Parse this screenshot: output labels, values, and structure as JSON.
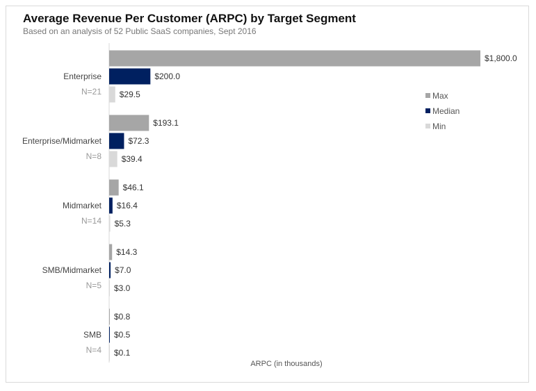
{
  "chart_data": {
    "type": "bar",
    "orientation": "horizontal",
    "title": "Average Revenue Per Customer (ARPC) by Target Segment",
    "subtitle": "Based on an analysis of 52 Public SaaS companies, Sept 2016",
    "xlabel": "ARPC (in thousands)",
    "xlim": [
      0,
      1800
    ],
    "grid": false,
    "legend_position": "right",
    "categories": [
      "Enterprise",
      "Enterprise/Midmarket",
      "Midmarket",
      "SMB/Midmarket",
      "SMB"
    ],
    "category_counts": [
      "N=21",
      "N=8",
      "N=14",
      "N=5",
      "N=4"
    ],
    "series": [
      {
        "name": "Max",
        "color": "#a6a6a6",
        "values": [
          1800.0,
          193.1,
          46.1,
          14.3,
          0.8
        ],
        "labels": [
          "$1,800.0",
          "$193.1",
          "$46.1",
          "$14.3",
          "$0.8"
        ]
      },
      {
        "name": "Median",
        "color": "#002060",
        "values": [
          200.0,
          72.3,
          16.4,
          7.0,
          0.5
        ],
        "labels": [
          "$200.0",
          "$72.3",
          "$16.4",
          "$7.0",
          "$0.5"
        ]
      },
      {
        "name": "Min",
        "color": "#d9d9d9",
        "values": [
          29.5,
          39.4,
          5.3,
          3.0,
          0.1
        ],
        "labels": [
          "$29.5",
          "$39.4",
          "$5.3",
          "$3.0",
          "$0.1"
        ]
      }
    ]
  }
}
